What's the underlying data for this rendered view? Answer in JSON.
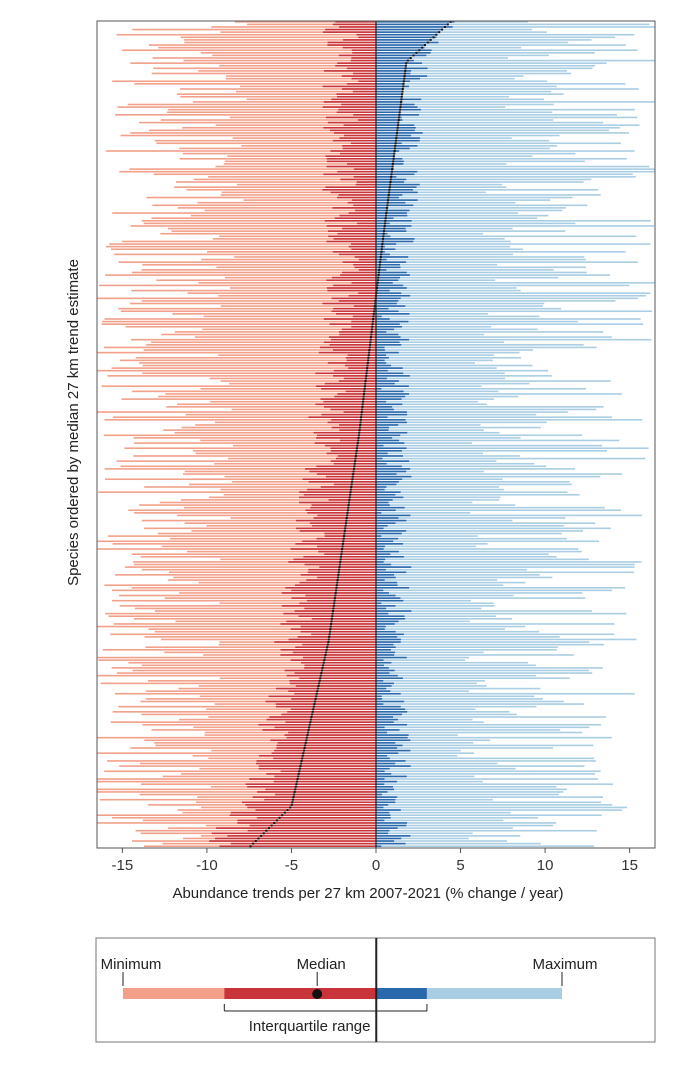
{
  "chart_data": {
    "type": "bar",
    "subtype": "ranged-horizontal-bars",
    "orientation": "horizontal",
    "title": "",
    "xlabel": "Abundance trends per 27 km 2007-2021 (% change / year)",
    "ylabel": "Species ordered by median 27 km trend estimate",
    "xlim": [
      -16.5,
      16.5
    ],
    "xticks": [
      -15,
      -10,
      -5,
      0,
      5,
      10,
      15
    ],
    "xtick_labels": [
      "-15",
      "-10",
      "-5",
      "0",
      "5",
      "10",
      "15"
    ],
    "grid": false,
    "colors": {
      "negative_range": "#f2a08a",
      "negative_iqr": "#c8343a",
      "positive_iqr": "#2a68ac",
      "positive_range": "#a9cde3",
      "median": "#111111"
    },
    "species_count": 320,
    "species_summary": {
      "description": "Species ordered top-to-bottom from most positive to most negative median trend; bars show min-to-max range with inner interquartile range and a median point.",
      "median_min": -7.5,
      "median_max": 4.5,
      "median_quantiles": {
        "p05": -5.0,
        "p25": -2.8,
        "p50": -1.0,
        "p75": 0.5,
        "p95": 1.8
      },
      "typical_minimum": -12,
      "typical_maximum": 11
    },
    "legend": {
      "position": "bottom",
      "labels": {
        "minimum": "Minimum",
        "median": "Median",
        "maximum": "Maximum",
        "iqr": "Interquartile range"
      },
      "example": {
        "minimum": -15,
        "q1": -9,
        "median": -3.5,
        "q3": 3,
        "maximum": 11
      }
    }
  }
}
